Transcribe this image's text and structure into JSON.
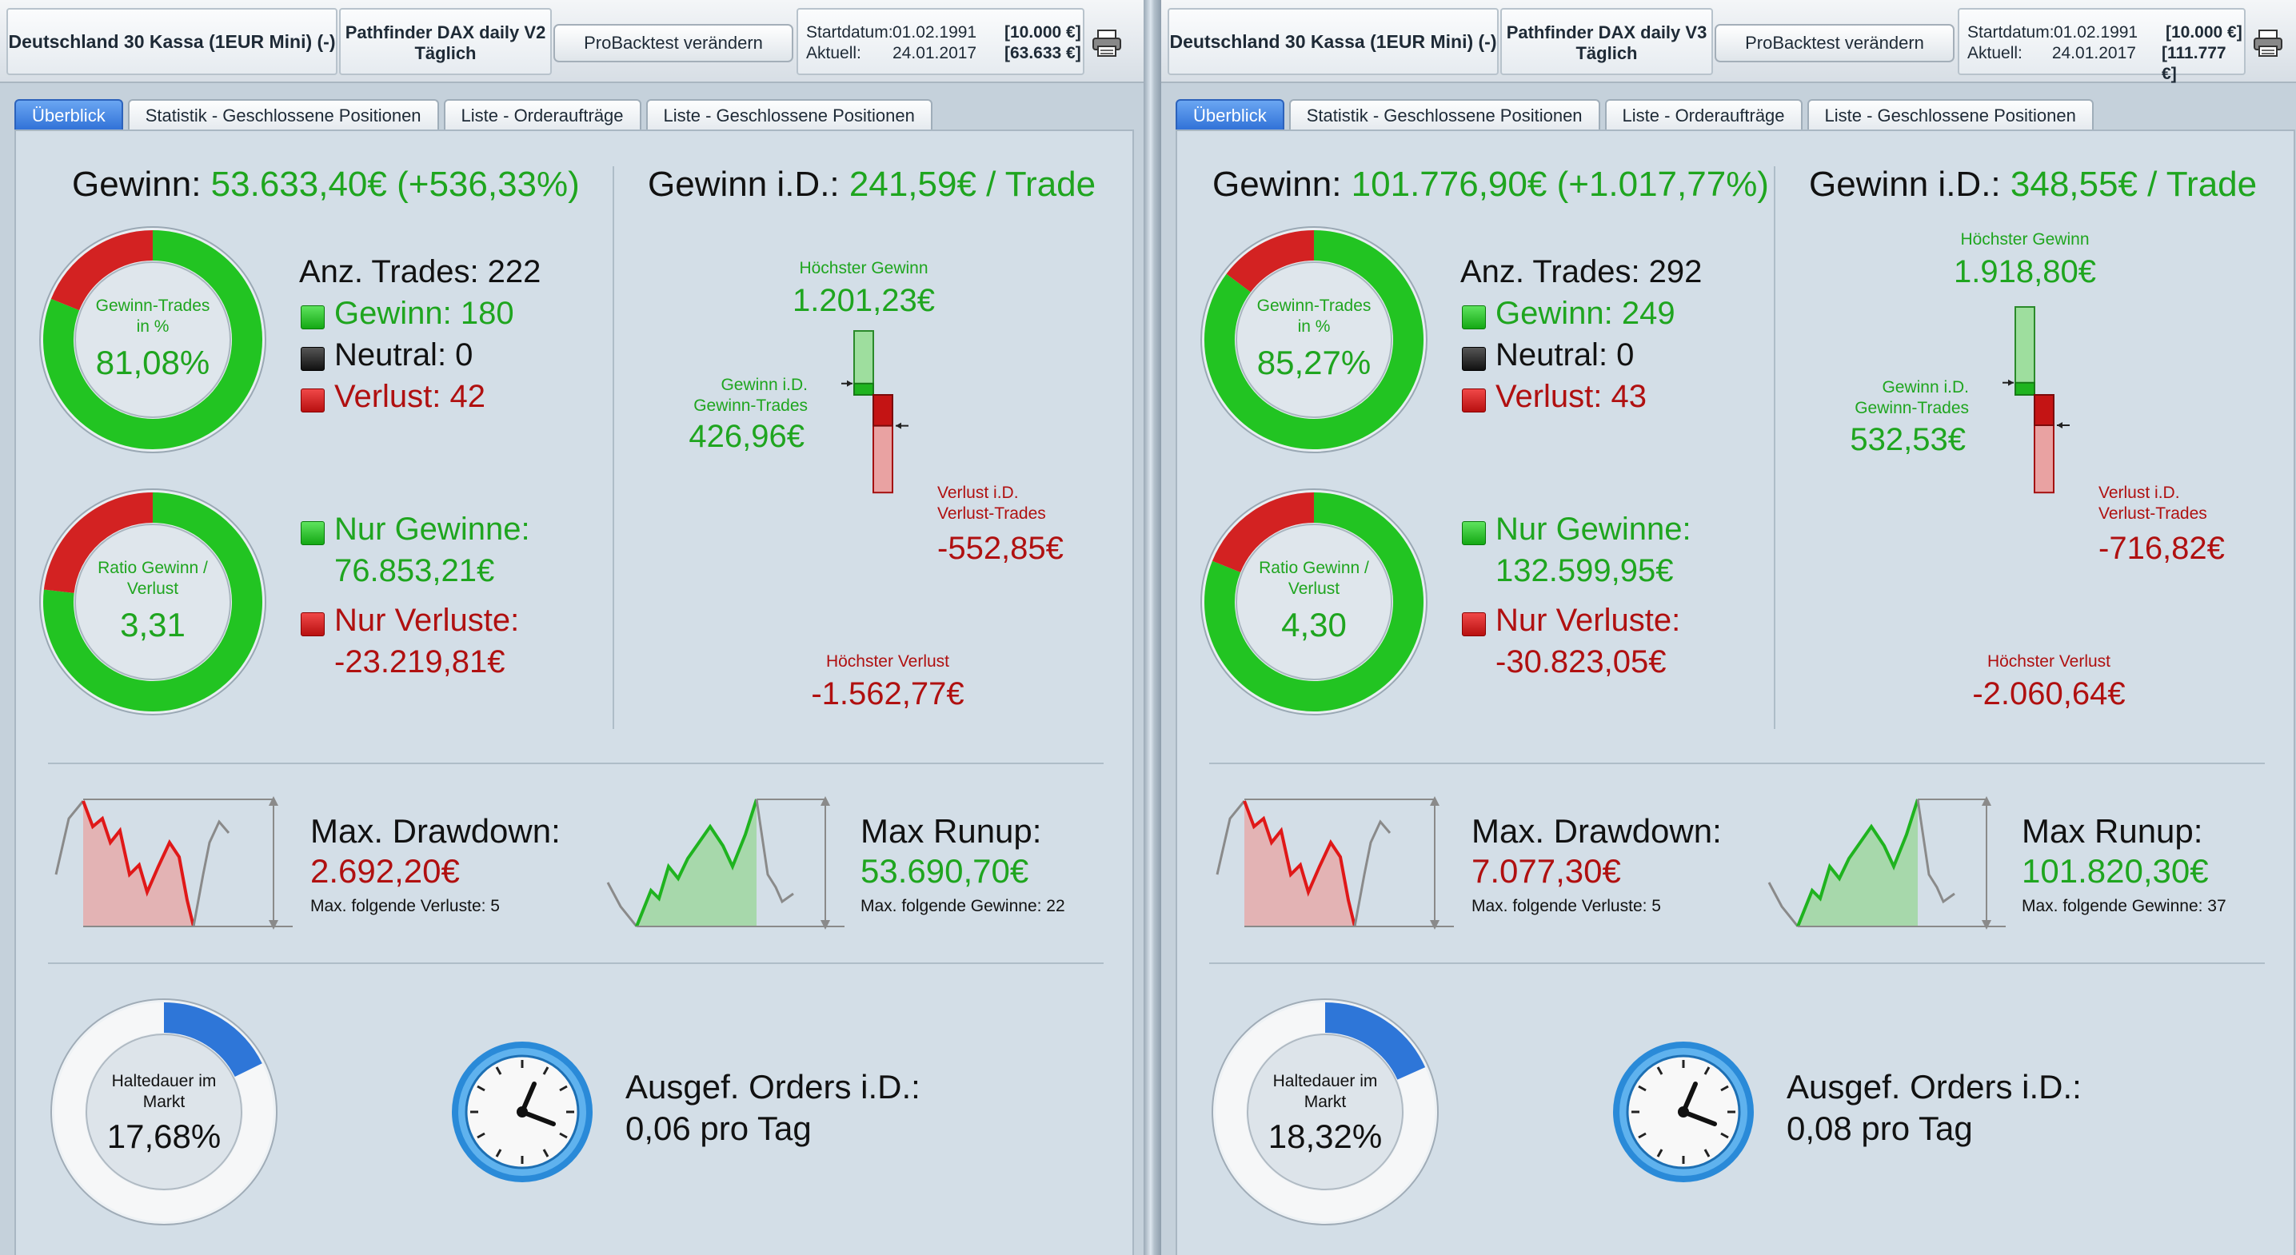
{
  "colors": {
    "gain": "#1fa51f",
    "loss": "#b01010",
    "accent": "#2e6fd6"
  },
  "icons": {
    "printer": "printer-icon",
    "clock": "clock-icon"
  },
  "panels": [
    {
      "instrument": "Deutschland 30 Kassa (1EUR Mini) (-)",
      "strategy_name": "Pathfinder DAX daily V2",
      "strategy_period": "Täglich",
      "button_label": "ProBacktest verändern",
      "start_label": "Startdatum:",
      "start_date": "01.02.1991",
      "start_value": "[10.000 €]",
      "current_label": "Aktuell:",
      "current_date": "24.01.2017",
      "current_value": "[63.633 €]",
      "tabs": [
        "Überblick",
        "Statistik - Geschlossene Positionen",
        "Liste - Orderaufträge",
        "Liste - Geschlossene Positionen"
      ],
      "gain_label": "Gewinn:",
      "gain_value": "53.633,40€ (+536,33%)",
      "winrate_title_1": "Gewinn-Trades",
      "winrate_title_2": "in %",
      "winrate_value": "81,08%",
      "winrate_fraction": 0.8108,
      "trades_label": "Anz. Trades: 222",
      "wins_label": "Gewinn: 180",
      "neutral_label": "Neutral: 0",
      "losses_label": "Verlust: 42",
      "ratio_title_1": "Ratio Gewinn /",
      "ratio_title_2": "Verlust",
      "ratio_value": "3,31",
      "ratio_fraction": 0.768,
      "only_gains_label": "Nur Gewinne:",
      "only_gains_value": "76.853,21€",
      "only_losses_label": "Nur Verluste:",
      "only_losses_value": "-23.219,81€",
      "avg_label": "Gewinn i.D.:",
      "avg_value": "241,59€ / Trade",
      "max_gain_label": "Höchster Gewinn",
      "max_gain_value": "1.201,23€",
      "max_gain_num": 1201.23,
      "avg_win_label_1": "Gewinn i.D.",
      "avg_win_label_2": "Gewinn-Trades",
      "avg_win_value": "426,96€",
      "avg_win_num": 426.96,
      "avg_loss_label_1": "Verlust i.D.",
      "avg_loss_label_2": "Verlust-Trades",
      "avg_loss_value": "-552,85€",
      "avg_loss_num": 552.85,
      "max_loss_label": "Höchster Verlust",
      "max_loss_value": "-1.562,77€",
      "max_loss_num": 1562.77,
      "drawdown_label": "Max. Drawdown:",
      "drawdown_value": "2.692,20€",
      "drawdown_sub": "Max. folgende Verluste: 5",
      "runup_label": "Max Runup:",
      "runup_value": "53.690,70€",
      "runup_sub": "Max. folgende Gewinne: 22",
      "hold_title_1": "Haltedauer im",
      "hold_title_2": "Markt",
      "hold_value": "17,68%",
      "hold_fraction": 0.1768,
      "orders_label": "Ausgef. Orders i.D.:",
      "orders_value": "0,06 pro Tag"
    },
    {
      "instrument": "Deutschland 30 Kassa (1EUR Mini) (-)",
      "strategy_name": "Pathfinder DAX daily V3",
      "strategy_period": "Täglich",
      "button_label": "ProBacktest verändern",
      "start_label": "Startdatum:",
      "start_date": "01.02.1991",
      "start_value": "[10.000 €]",
      "current_label": "Aktuell:",
      "current_date": "24.01.2017",
      "current_value": "[111.777 €]",
      "tabs": [
        "Überblick",
        "Statistik - Geschlossene Positionen",
        "Liste - Orderaufträge",
        "Liste - Geschlossene Positionen"
      ],
      "gain_label": "Gewinn:",
      "gain_value": "101.776,90€ (+1.017,77%)",
      "winrate_title_1": "Gewinn-Trades",
      "winrate_title_2": "in %",
      "winrate_value": "85,27%",
      "winrate_fraction": 0.8527,
      "trades_label": "Anz. Trades: 292",
      "wins_label": "Gewinn: 249",
      "neutral_label": "Neutral: 0",
      "losses_label": "Verlust: 43",
      "ratio_title_1": "Ratio Gewinn /",
      "ratio_title_2": "Verlust",
      "ratio_value": "4,30",
      "ratio_fraction": 0.811,
      "only_gains_label": "Nur Gewinne:",
      "only_gains_value": "132.599,95€",
      "only_losses_label": "Nur Verluste:",
      "only_losses_value": "-30.823,05€",
      "avg_label": "Gewinn i.D.:",
      "avg_value": "348,55€ / Trade",
      "max_gain_label": "Höchster Gewinn",
      "max_gain_value": "1.918,80€",
      "max_gain_num": 1918.8,
      "avg_win_label_1": "Gewinn i.D.",
      "avg_win_label_2": "Gewinn-Trades",
      "avg_win_value": "532,53€",
      "avg_win_num": 532.53,
      "avg_loss_label_1": "Verlust i.D.",
      "avg_loss_label_2": "Verlust-Trades",
      "avg_loss_value": "-716,82€",
      "avg_loss_num": 716.82,
      "max_loss_label": "Höchster Verlust",
      "max_loss_value": "-2.060,64€",
      "max_loss_num": 2060.64,
      "drawdown_label": "Max. Drawdown:",
      "drawdown_value": "7.077,30€",
      "drawdown_sub": "Max. folgende Verluste: 5",
      "runup_label": "Max Runup:",
      "runup_value": "101.820,30€",
      "runup_sub": "Max. folgende Gewinne: 37",
      "hold_title_1": "Haltedauer im",
      "hold_title_2": "Markt",
      "hold_value": "18,32%",
      "hold_fraction": 0.1832,
      "orders_label": "Ausgef. Orders i.D.:",
      "orders_value": "0,08 pro Tag"
    }
  ]
}
